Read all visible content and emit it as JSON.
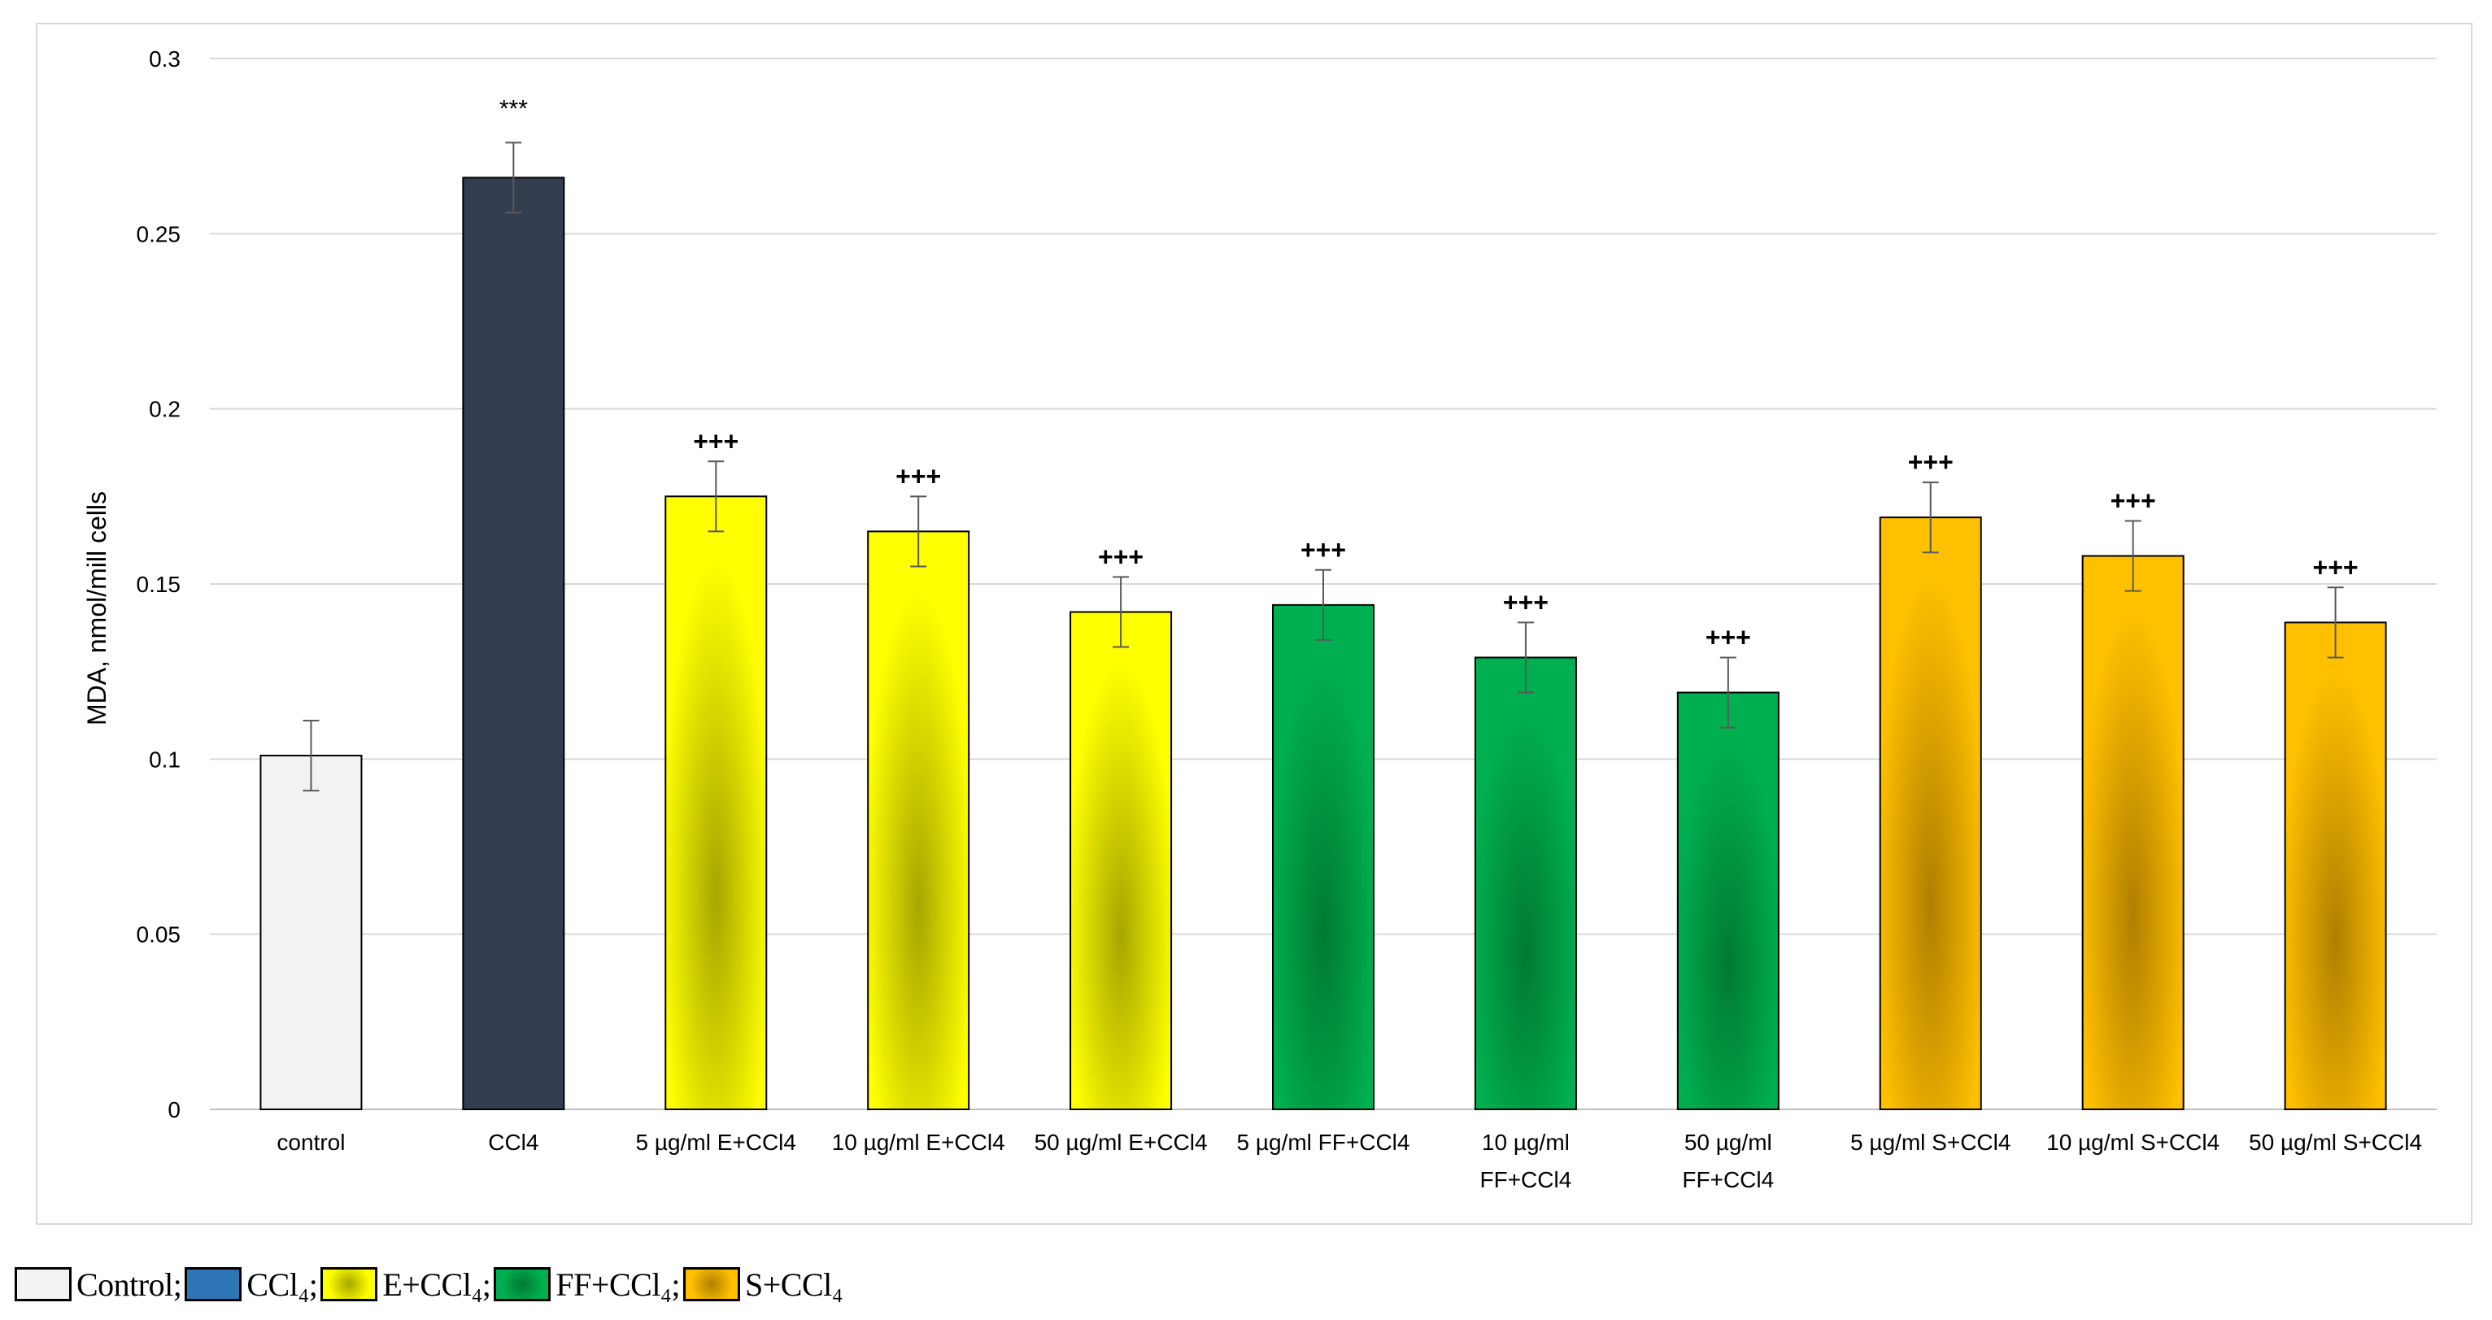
{
  "chart_data": {
    "type": "bar",
    "title": "",
    "xlabel": "",
    "ylabel": "MDA, nmol/mill cells",
    "ylim": [
      0,
      0.3
    ],
    "yticks": [
      0,
      0.05,
      0.1,
      0.15,
      0.2,
      0.25,
      0.3
    ],
    "ytick_labels": [
      "0",
      "0.05",
      "0.1",
      "0.15",
      "0.2",
      "0.25",
      "0.3"
    ],
    "grid": true,
    "categories": [
      [
        "control"
      ],
      [
        "CCl4"
      ],
      [
        "5 µg/ml E+CCl4"
      ],
      [
        "10 µg/ml E+CCl4"
      ],
      [
        "50 µg/ml E+CCl4"
      ],
      [
        "5 µg/ml FF+CCl4"
      ],
      [
        "10 µg/ml",
        "FF+CCl4"
      ],
      [
        "50 µg/ml",
        "FF+CCl4"
      ],
      [
        "5 µg/ml S+CCl4"
      ],
      [
        "10 µg/ml S+CCl4"
      ],
      [
        "50 µg/ml S+CCl4"
      ]
    ],
    "values": [
      0.101,
      0.266,
      0.175,
      0.165,
      0.142,
      0.144,
      0.129,
      0.119,
      0.169,
      0.158,
      0.139
    ],
    "errors": [
      0.01,
      0.01,
      0.01,
      0.01,
      0.01,
      0.01,
      0.01,
      0.01,
      0.01,
      0.01,
      0.01
    ],
    "annotations": [
      "",
      "***",
      "+++",
      "+++",
      "+++",
      "+++",
      "+++",
      "+++",
      "+++",
      "+++",
      "+++"
    ],
    "groups": [
      "control",
      "ccl4",
      "e",
      "e",
      "e",
      "ff",
      "ff",
      "ff",
      "s",
      "s",
      "s"
    ],
    "group_colors": {
      "control": {
        "base": "#f2f2f2",
        "center": "#f2f2f2"
      },
      "ccl4": {
        "base": "#333f50",
        "center": "#333f50"
      },
      "e": {
        "base": "#ffff00",
        "center": "#a6a600"
      },
      "ff": {
        "base": "#00b050",
        "center": "#007a33"
      },
      "s": {
        "base": "#ffc000",
        "center": "#b07f00"
      }
    }
  },
  "legend": {
    "items": [
      {
        "label": "Control;",
        "swatch": "control"
      },
      {
        "label": "CCl₄;",
        "swatch": "ccl4"
      },
      {
        "label": "E+CCl₄;",
        "swatch": "e"
      },
      {
        "label": "FF+CCl₄;",
        "swatch": "ff"
      },
      {
        "label": "S+CCl₄",
        "swatch": "s"
      }
    ],
    "swatch_colors": {
      "control": "#f2f2f2",
      "ccl4": "#2e75b6",
      "e": "#ffff00",
      "ff": "#00b050",
      "s": "#ffc000"
    }
  }
}
